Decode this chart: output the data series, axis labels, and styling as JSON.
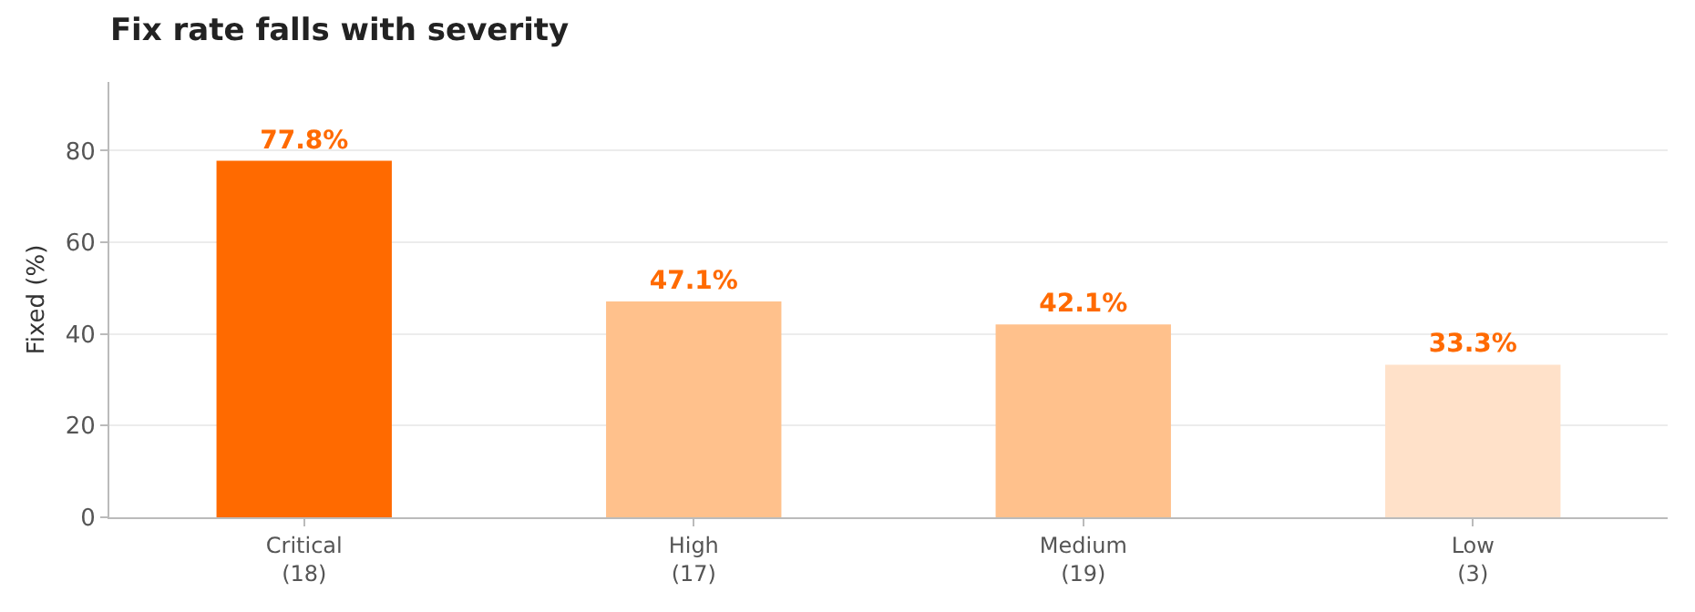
{
  "chart_data": {
    "type": "bar",
    "title": "Fix rate falls with severity",
    "ylabel": "Fixed (%)",
    "categories": [
      "Critical\n(18)",
      "High\n(17)",
      "Medium\n(19)",
      "Low\n(3)"
    ],
    "values": [
      77.8,
      47.1,
      42.1,
      33.3
    ],
    "colors": [
      "#ff6a00",
      "#ffc18c",
      "#ffc18c",
      "#ffe1c9"
    ],
    "value_labels": [
      "77.8%",
      "47.1%",
      "42.1%",
      "33.3%"
    ],
    "ylim": [
      0,
      95
    ],
    "yticks": [
      0,
      20,
      40,
      60,
      80
    ],
    "grid": "y"
  }
}
